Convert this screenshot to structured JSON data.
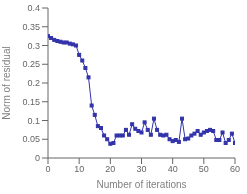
{
  "chart_data": {
    "type": "line",
    "xlabel": "Number of iterations",
    "ylabel": "Norm of residual",
    "x": [
      0,
      1,
      2,
      3,
      4,
      5,
      6,
      7,
      8,
      9,
      10,
      11,
      12,
      13,
      14,
      15,
      16,
      17,
      18,
      19,
      20,
      21,
      22,
      23,
      24,
      25,
      26,
      27,
      28,
      29,
      30,
      31,
      32,
      33,
      34,
      35,
      36,
      37,
      38,
      39,
      40,
      41,
      42,
      43,
      44,
      45,
      46,
      47,
      48,
      49,
      50,
      51,
      52,
      53,
      54,
      55,
      56,
      57,
      58,
      59,
      60
    ],
    "values": [
      0.325,
      0.32,
      0.315,
      0.312,
      0.31,
      0.308,
      0.308,
      0.305,
      0.303,
      0.3,
      0.275,
      0.26,
      0.24,
      0.215,
      0.14,
      0.115,
      0.085,
      0.08,
      0.06,
      0.05,
      0.038,
      0.04,
      0.06,
      0.06,
      0.06,
      0.075,
      0.062,
      0.09,
      0.078,
      0.072,
      0.068,
      0.095,
      0.075,
      0.062,
      0.105,
      0.075,
      0.062,
      0.06,
      0.062,
      0.05,
      0.045,
      0.048,
      0.043,
      0.105,
      0.05,
      0.052,
      0.06,
      0.065,
      0.072,
      0.062,
      0.068,
      0.072,
      0.075,
      0.072,
      0.048,
      0.048,
      0.068,
      0.04,
      0.048,
      0.065,
      0.04
    ],
    "color": "#3333aa",
    "marker": "square",
    "xlim": [
      0,
      60
    ],
    "ylim": [
      0,
      0.4
    ],
    "xticks": [
      0,
      10,
      20,
      30,
      40,
      50,
      60
    ],
    "yticks": [
      0,
      0.05,
      0.1,
      0.15,
      0.2,
      0.25,
      0.3,
      0.35,
      0.4
    ]
  }
}
